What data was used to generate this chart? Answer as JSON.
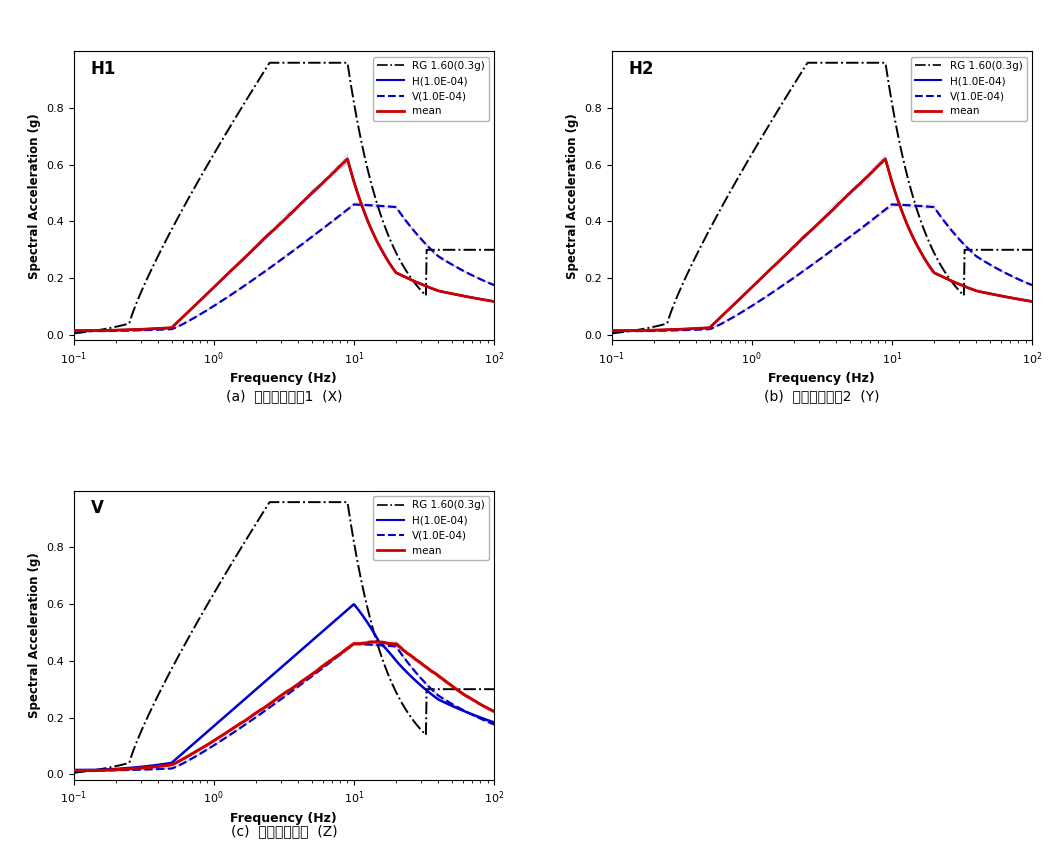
{
  "captions": [
    "(a)  수평방향성분1  (X)",
    "(b)  수평방향성분2  (Y)",
    "(c)  수직방향성분  (Z)"
  ],
  "legend_labels": [
    "RG 1.60(0.3g)",
    "H(1.0E-04)",
    "V(1.0E-04)",
    "mean"
  ],
  "xlabel": "Frequency (Hz)",
  "ylabel": "Spectral Acceleration (g)",
  "xlim": [
    0.1,
    100
  ],
  "ylim": [
    -0.02,
    1.0
  ],
  "yticks": [
    0.0,
    0.2,
    0.4,
    0.6,
    0.8
  ],
  "rg_color": "#000000",
  "H_color": "#0000cc",
  "V_color": "#0000cc",
  "mean_color": "#cc0000",
  "fill_H_color": "#aaccff",
  "fill_V_color": "#ffccaa",
  "bg_color": "#ffffff"
}
